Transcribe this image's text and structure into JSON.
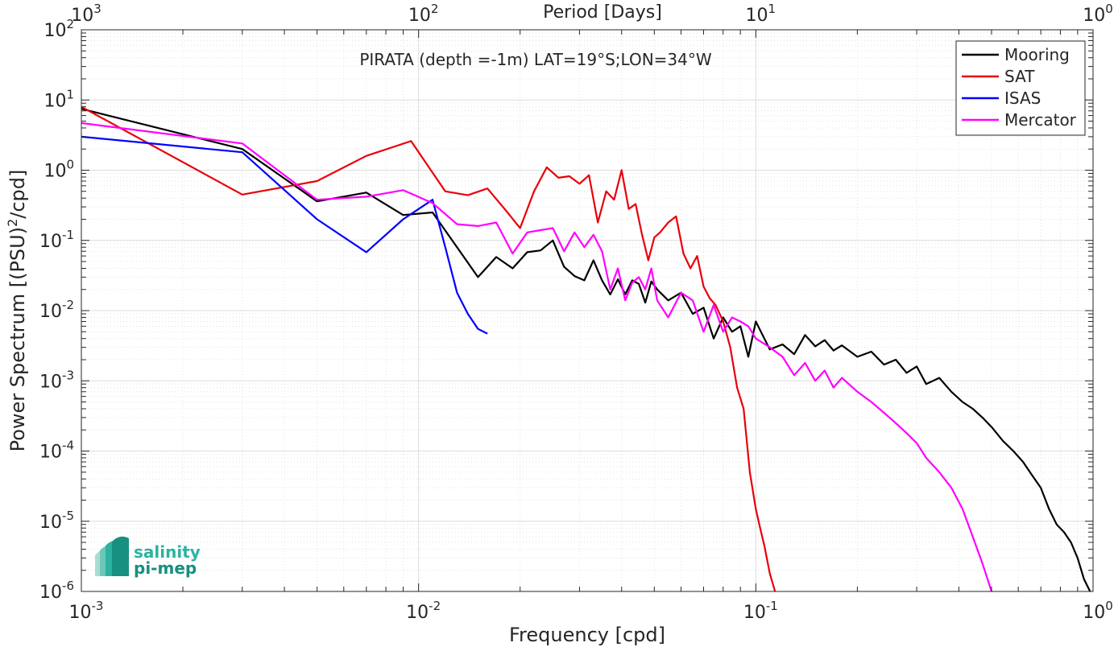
{
  "chart_data": {
    "type": "line",
    "title": "PIRATA (depth =-1m) LAT=19°S;LON=34°W",
    "xlabel": "Frequency [cpd]",
    "ylabel_parts": [
      "Power Spectrum [(PSU)",
      "2",
      "/cpd]"
    ],
    "top_xlabel": "Period [Days]",
    "x_scale": "log",
    "y_scale": "log",
    "xlim": [
      0.001,
      1
    ],
    "ylim": [
      1e-06,
      100
    ],
    "grid": true,
    "legend_position": "top-right",
    "x_ticks": [
      {
        "base": "10",
        "exp": "-3"
      },
      {
        "base": "10",
        "exp": "-2"
      },
      {
        "base": "10",
        "exp": "-1"
      },
      {
        "base": "10",
        "exp": "0"
      }
    ],
    "top_ticks": [
      {
        "base": "10",
        "exp": "3"
      },
      {
        "base": "10",
        "exp": "2"
      },
      {
        "base": "10",
        "exp": "1"
      },
      {
        "base": "10",
        "exp": "0"
      }
    ],
    "y_ticks": [
      {
        "base": "10",
        "exp": "-6"
      },
      {
        "base": "10",
        "exp": "-5"
      },
      {
        "base": "10",
        "exp": "-4"
      },
      {
        "base": "10",
        "exp": "-3"
      },
      {
        "base": "10",
        "exp": "-2"
      },
      {
        "base": "10",
        "exp": "-1"
      },
      {
        "base": "10",
        "exp": "0"
      },
      {
        "base": "10",
        "exp": "1"
      },
      {
        "base": "10",
        "exp": "2"
      }
    ],
    "series": [
      {
        "name": "Mooring",
        "color": "#000000",
        "x": [
          0.001,
          0.003,
          0.005,
          0.007,
          0.009,
          0.011,
          0.013,
          0.015,
          0.017,
          0.019,
          0.021,
          0.023,
          0.025,
          0.027,
          0.029,
          0.031,
          0.033,
          0.035,
          0.037,
          0.039,
          0.041,
          0.043,
          0.045,
          0.047,
          0.049,
          0.051,
          0.055,
          0.06,
          0.065,
          0.07,
          0.075,
          0.08,
          0.085,
          0.09,
          0.095,
          0.1,
          0.11,
          0.12,
          0.13,
          0.14,
          0.15,
          0.16,
          0.17,
          0.18,
          0.2,
          0.22,
          0.24,
          0.26,
          0.28,
          0.3,
          0.32,
          0.35,
          0.38,
          0.41,
          0.44,
          0.47,
          0.5,
          0.54,
          0.58,
          0.62,
          0.66,
          0.7,
          0.74,
          0.78,
          0.82,
          0.86,
          0.9,
          0.94,
          0.98
        ],
        "y": [
          7.5,
          2.0,
          0.36,
          0.48,
          0.23,
          0.25,
          0.08,
          0.03,
          0.058,
          0.04,
          0.068,
          0.072,
          0.1,
          0.042,
          0.031,
          0.027,
          0.052,
          0.027,
          0.017,
          0.028,
          0.017,
          0.027,
          0.024,
          0.013,
          0.026,
          0.02,
          0.014,
          0.018,
          0.009,
          0.011,
          0.004,
          0.008,
          0.005,
          0.006,
          0.0022,
          0.007,
          0.0028,
          0.0033,
          0.0024,
          0.0045,
          0.0031,
          0.0038,
          0.0027,
          0.0032,
          0.0022,
          0.0026,
          0.0017,
          0.002,
          0.0013,
          0.0016,
          0.0009,
          0.0011,
          0.0007,
          0.0005,
          0.0004,
          0.0003,
          0.00022,
          0.00014,
          0.0001,
          7e-05,
          4.5e-05,
          3e-05,
          1.5e-05,
          9e-06,
          7e-06,
          5e-06,
          3e-06,
          1.5e-06,
          1e-06
        ]
      },
      {
        "name": "SAT",
        "color": "#e8000b",
        "x": [
          0.001,
          0.003,
          0.005,
          0.007,
          0.0095,
          0.012,
          0.014,
          0.016,
          0.018,
          0.02,
          0.022,
          0.024,
          0.026,
          0.028,
          0.03,
          0.032,
          0.034,
          0.036,
          0.038,
          0.04,
          0.042,
          0.044,
          0.046,
          0.048,
          0.05,
          0.052,
          0.055,
          0.058,
          0.061,
          0.064,
          0.067,
          0.07,
          0.073,
          0.076,
          0.08,
          0.084,
          0.088,
          0.092,
          0.096,
          0.1,
          0.103,
          0.106,
          0.11,
          0.114
        ],
        "y": [
          8.0,
          0.45,
          0.7,
          1.6,
          2.6,
          0.5,
          0.44,
          0.55,
          0.28,
          0.15,
          0.5,
          1.1,
          0.78,
          0.82,
          0.64,
          0.85,
          0.18,
          0.5,
          0.38,
          1.0,
          0.28,
          0.33,
          0.12,
          0.052,
          0.11,
          0.13,
          0.18,
          0.22,
          0.065,
          0.04,
          0.06,
          0.022,
          0.015,
          0.012,
          0.007,
          0.003,
          0.0008,
          0.0004,
          5e-05,
          1.5e-05,
          8e-06,
          4.5e-06,
          1.8e-06,
          1e-06
        ]
      },
      {
        "name": "ISAS",
        "color": "#0000ff",
        "x": [
          0.001,
          0.003,
          0.005,
          0.007,
          0.009,
          0.011,
          0.012,
          0.013,
          0.014,
          0.015,
          0.016
        ],
        "y": [
          3.0,
          1.8,
          0.2,
          0.068,
          0.2,
          0.38,
          0.08,
          0.018,
          0.009,
          0.0055,
          0.0047
        ]
      },
      {
        "name": "Mercator",
        "color": "#ff00ff",
        "x": [
          0.001,
          0.003,
          0.005,
          0.007,
          0.009,
          0.011,
          0.013,
          0.015,
          0.017,
          0.019,
          0.021,
          0.023,
          0.025,
          0.027,
          0.029,
          0.031,
          0.033,
          0.035,
          0.037,
          0.039,
          0.041,
          0.043,
          0.045,
          0.047,
          0.049,
          0.051,
          0.055,
          0.06,
          0.065,
          0.07,
          0.075,
          0.08,
          0.085,
          0.09,
          0.095,
          0.1,
          0.11,
          0.12,
          0.13,
          0.14,
          0.15,
          0.16,
          0.17,
          0.18,
          0.2,
          0.22,
          0.24,
          0.26,
          0.28,
          0.3,
          0.32,
          0.35,
          0.38,
          0.41,
          0.44,
          0.47,
          0.5
        ],
        "y": [
          4.7,
          2.4,
          0.38,
          0.42,
          0.52,
          0.34,
          0.17,
          0.16,
          0.18,
          0.065,
          0.13,
          0.14,
          0.15,
          0.07,
          0.13,
          0.08,
          0.12,
          0.07,
          0.02,
          0.04,
          0.014,
          0.025,
          0.03,
          0.02,
          0.04,
          0.014,
          0.008,
          0.018,
          0.014,
          0.005,
          0.012,
          0.005,
          0.008,
          0.007,
          0.006,
          0.004,
          0.003,
          0.0022,
          0.0012,
          0.0018,
          0.001,
          0.0014,
          0.0008,
          0.0011,
          0.0007,
          0.0005,
          0.00035,
          0.00025,
          0.00018,
          0.00013,
          8e-05,
          5e-05,
          3e-05,
          1.5e-05,
          6e-06,
          2.5e-06,
          1e-06
        ]
      }
    ]
  },
  "logo": {
    "line1": "salinity",
    "line2": "pi-mep",
    "color": "#2bb3a0"
  }
}
